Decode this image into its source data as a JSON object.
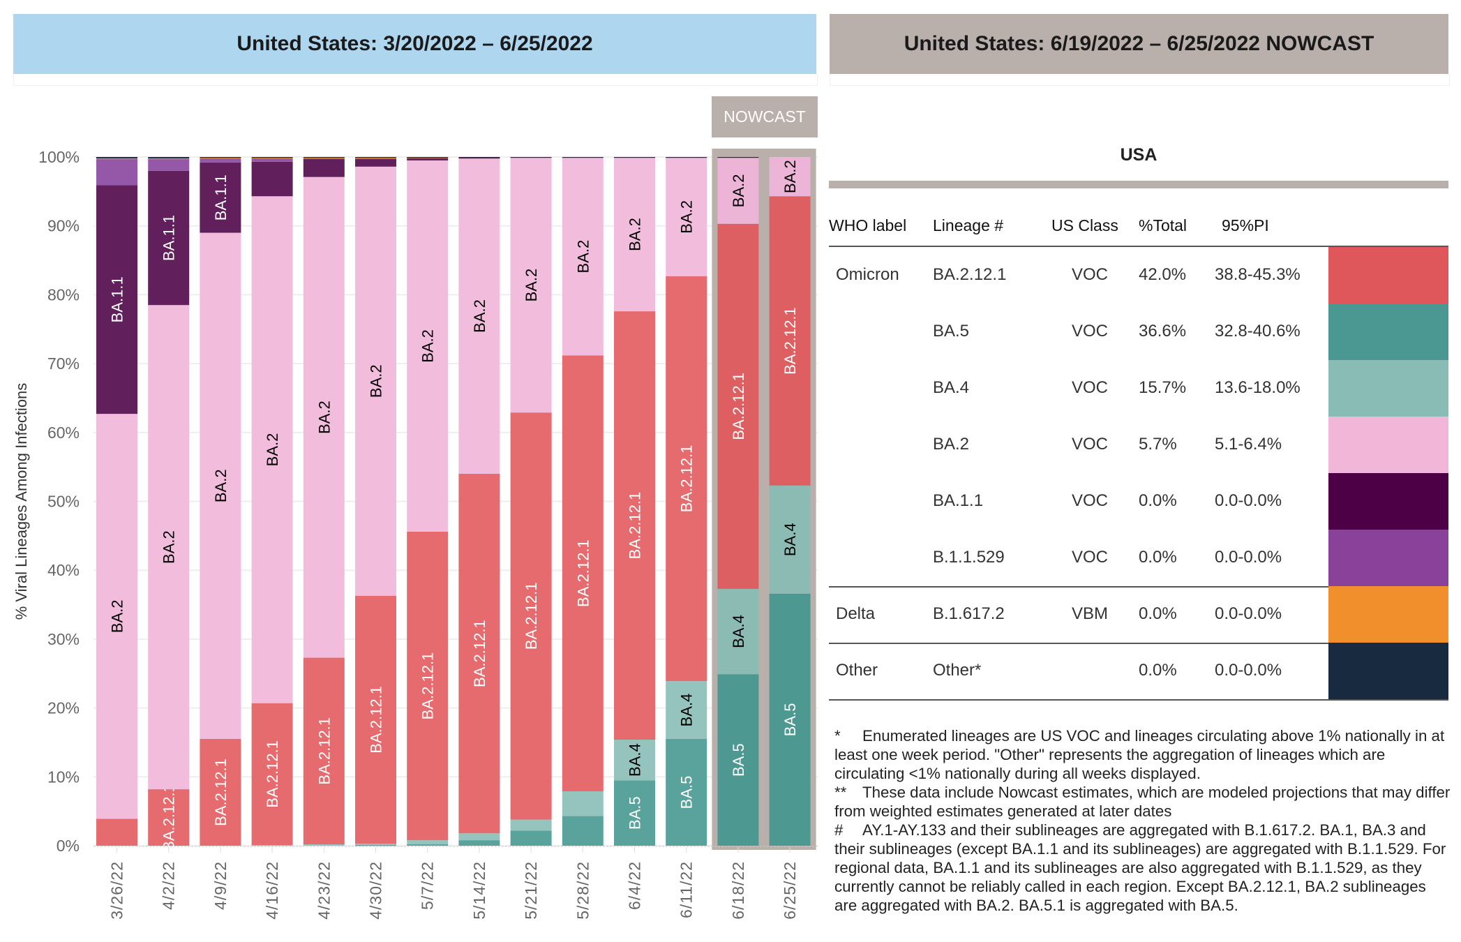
{
  "header_left": {
    "title": "United States: 3/20/2022 – 6/25/2022"
  },
  "header_right": {
    "title": "United States: 6/19/2022 – 6/25/2022 NOWCAST"
  },
  "nowcast_tag": "NOWCAST",
  "chart_data": {
    "type": "bar",
    "stacked": true,
    "ylabel": "% Viral Lineages Among Infections",
    "ylim": [
      0,
      100
    ],
    "yticks": [
      "0%",
      "10%",
      "20%",
      "30%",
      "40%",
      "50%",
      "60%",
      "70%",
      "80%",
      "90%",
      "100%"
    ],
    "grid": true,
    "categories": [
      "3/26/22",
      "4/2/22",
      "4/9/22",
      "4/16/22",
      "4/23/22",
      "4/30/22",
      "5/7/22",
      "5/14/22",
      "5/21/22",
      "5/28/22",
      "6/4/22",
      "6/11/22",
      "6/18/22",
      "6/25/22"
    ],
    "nowcast_categories": [
      "6/18/22",
      "6/25/22"
    ],
    "series": [
      {
        "name": "BA.5",
        "color": "#5aa39c",
        "nowcast_color": "#4d9991",
        "label_color": "#ffffff",
        "values": [
          0,
          0,
          0,
          0,
          0,
          0.1,
          0.2,
          0.8,
          2.2,
          4.3,
          9.5,
          15.5,
          24.9,
          36.6
        ]
      },
      {
        "name": "BA.4",
        "color": "#94c4bd",
        "nowcast_color": "#8cbbb4",
        "label_color": "#000000",
        "values": [
          0,
          0,
          0,
          0.1,
          0.2,
          0.2,
          0.6,
          1.0,
          1.6,
          3.6,
          5.9,
          8.4,
          12.4,
          15.7
        ]
      },
      {
        "name": "BA.2.12.1",
        "color": "#e66b6e",
        "nowcast_color": "#de5f62",
        "label_color": "#ffffff",
        "values": [
          3.9,
          8.2,
          15.5,
          20.6,
          27.1,
          36.0,
          44.8,
          52.2,
          59.1,
          63.3,
          62.2,
          58.8,
          53.0,
          42.0
        ]
      },
      {
        "name": "BA.2",
        "color": "#f2bddc",
        "nowcast_color": "#ecb4d6",
        "label_color": "#000000",
        "values": [
          58.8,
          70.3,
          73.5,
          73.6,
          69.8,
          62.3,
          53.9,
          45.8,
          37.0,
          28.7,
          22.3,
          17.2,
          9.6,
          5.7
        ]
      },
      {
        "name": "BA.1.1",
        "color": "#611f5c",
        "nowcast_color": "#4d0a4a",
        "label_color": "#ffffff",
        "values": [
          33.2,
          19.5,
          10.2,
          5.0,
          2.6,
          1.1,
          0.3,
          0.1,
          0,
          0,
          0,
          0,
          0,
          0
        ]
      },
      {
        "name": "B.1.1.529",
        "color": "#9558a8",
        "nowcast_color": "#8a47a0",
        "label_color": "#ffffff",
        "values": [
          3.8,
          1.7,
          0.6,
          0.5,
          0.1,
          0.1,
          0.1,
          0,
          0,
          0,
          0,
          0,
          0,
          0
        ]
      },
      {
        "name": "B.1.617.2",
        "color": "#f0902c",
        "nowcast_color": "#f0902c",
        "label_color": "#000000",
        "values": [
          0.1,
          0.1,
          0.1,
          0.1,
          0.1,
          0.1,
          0.05,
          0,
          0,
          0,
          0,
          0,
          0,
          0
        ]
      },
      {
        "name": "Other",
        "color": "#1b2d44",
        "nowcast_color": "#1b2d44",
        "label_color": "#ffffff",
        "values": [
          0.2,
          0.2,
          0.1,
          0.1,
          0.1,
          0.1,
          0.05,
          0.1,
          0.1,
          0.1,
          0.1,
          0.1,
          0.1,
          0
        ]
      }
    ]
  },
  "table": {
    "region": "USA",
    "headers": {
      "who": "WHO label",
      "lineage": "Lineage #",
      "class": "US Class",
      "total": "%Total",
      "pi": "95%PI"
    },
    "rows": [
      {
        "who": "Omicron",
        "lineage": "BA.2.12.1",
        "class": "VOC",
        "total": "42.0%",
        "pi": "38.8-45.3%",
        "color": "#e0575b"
      },
      {
        "who": "",
        "lineage": "BA.5",
        "class": "VOC",
        "total": "36.6%",
        "pi": "32.8-40.6%",
        "color": "#4a9891"
      },
      {
        "who": "",
        "lineage": "BA.4",
        "class": "VOC",
        "total": "15.7%",
        "pi": "13.6-18.0%",
        "color": "#88bcb5"
      },
      {
        "who": "",
        "lineage": "BA.2",
        "class": "VOC",
        "total": "5.7%",
        "pi": "5.1-6.4%",
        "color": "#f1b6d8"
      },
      {
        "who": "",
        "lineage": "BA.1.1",
        "class": "VOC",
        "total": "0.0%",
        "pi": "0.0-0.0%",
        "color": "#4d0045"
      },
      {
        "who": "",
        "lineage": "B.1.1.529",
        "class": "VOC",
        "total": "0.0%",
        "pi": "0.0-0.0%",
        "color": "#8a4199"
      },
      {
        "who": "Delta",
        "lineage": "B.1.617.2",
        "class": "VBM",
        "total": "0.0%",
        "pi": "0.0-0.0%",
        "color": "#f08f2c"
      },
      {
        "who": "Other",
        "lineage": "Other*",
        "class": "",
        "total": "0.0%",
        "pi": "0.0-0.0%",
        "color": "#172a40"
      }
    ]
  },
  "footnotes": [
    {
      "marker": "*",
      "text": "Enumerated lineages are US VOC and lineages circulating above 1% nationally in at least one week period. \"Other\" represents the aggregation of lineages which are circulating <1% nationally during all weeks displayed."
    },
    {
      "marker": "**",
      "text": "These data include Nowcast estimates, which are modeled projections that may differ from weighted estimates generated at later dates"
    },
    {
      "marker": "#",
      "text": "AY.1-AY.133 and their sublineages are aggregated with B.1.617.2. BA.1, BA.3 and their sublineages (except BA.1.1 and its sublineages) are aggregated with B.1.1.529. For regional data, BA.1.1 and its sublineages are also aggregated with B.1.1.529, as they currently cannot be reliably called in each region. Except BA.2.12.1, BA.2 sublineages are aggregated with BA.2. BA.5.1 is aggregated with BA.5."
    }
  ]
}
